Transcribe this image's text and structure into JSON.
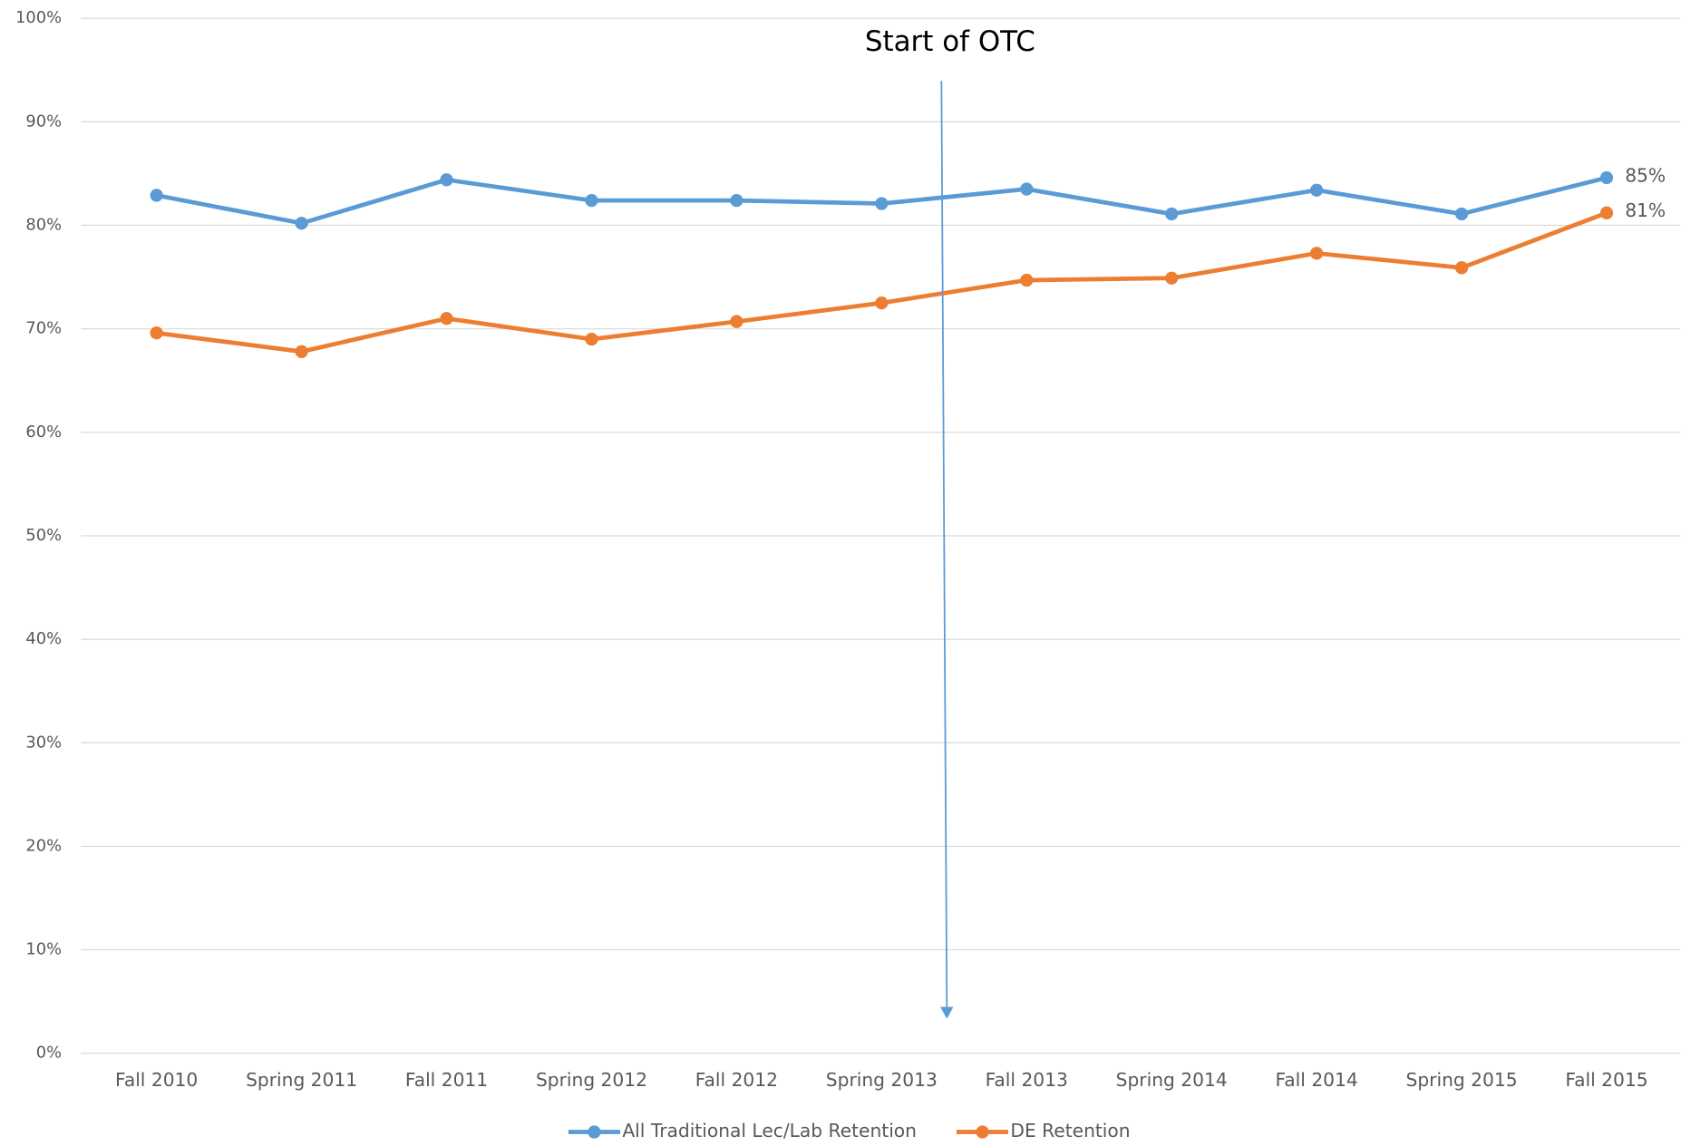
{
  "chart_data": {
    "type": "line",
    "annotation": "Start of OTC",
    "categories": [
      "Fall 2010",
      "Spring 2011",
      "Fall 2011",
      "Spring 2012",
      "Fall 2012",
      "Spring 2013",
      "Fall 2013",
      "Spring 2014",
      "Fall 2014",
      "Spring 2015",
      "Fall 2015"
    ],
    "series": [
      {
        "name": "All Traditional Lec/Lab Retention",
        "color": "#5b9bd5",
        "values": [
          82.9,
          80.2,
          84.4,
          82.4,
          82.4,
          82.1,
          83.5,
          81.1,
          83.4,
          81.1,
          84.6
        ],
        "value_labels": [
          null,
          null,
          null,
          null,
          null,
          null,
          null,
          null,
          null,
          null,
          "85%"
        ]
      },
      {
        "name": "DE Retention",
        "color": "#ed7d31",
        "values": [
          69.6,
          67.8,
          71.0,
          69.0,
          70.7,
          72.5,
          74.7,
          74.9,
          77.3,
          75.9,
          81.2
        ],
        "value_labels": [
          null,
          null,
          null,
          null,
          null,
          null,
          null,
          null,
          null,
          null,
          "81%"
        ]
      }
    ],
    "ylim": [
      0,
      100
    ],
    "yticks": [
      {
        "value": 0,
        "label": "0%"
      },
      {
        "value": 10,
        "label": "10%"
      },
      {
        "value": 20,
        "label": "20%"
      },
      {
        "value": 30,
        "label": "30%"
      },
      {
        "value": 40,
        "label": "40%"
      },
      {
        "value": 50,
        "label": "50%"
      },
      {
        "value": 60,
        "label": "60%"
      },
      {
        "value": 70,
        "label": "70%"
      },
      {
        "value": 80,
        "label": "80%"
      },
      {
        "value": 90,
        "label": "90%"
      },
      {
        "value": 100,
        "label": "100%"
      }
    ],
    "grid": true,
    "legend": "bottom"
  }
}
